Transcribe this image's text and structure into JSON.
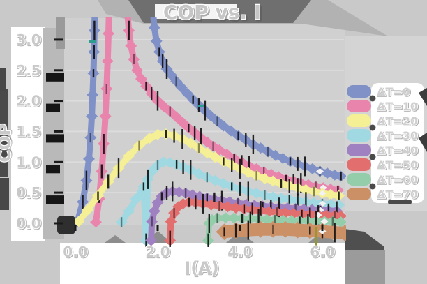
{
  "title": "COP vs. I",
  "axes": {
    "x_label": "I(A)",
    "y_label": "COP",
    "x_tick_labels": [
      "0.0",
      "2.0",
      "4.0",
      "6.0"
    ],
    "y_tick_labels": [
      "0.0",
      "0.5",
      "1.0",
      "1.5",
      "2.0",
      "2.5",
      "3.0"
    ]
  },
  "colors": {
    "canvas": "#c9c9c9",
    "plot_background": "#d0d0d0",
    "panel_white": "#ffffff",
    "shadow_dark": "#4f4f4f",
    "shadow_mid": "#9b9b9b",
    "error_bar": "#101010"
  },
  "chart_data": {
    "type": "line",
    "title": "COP vs. I",
    "xlabel": "I(A)",
    "ylabel": "COP",
    "xlim": [
      0,
      6.8
    ],
    "ylim": [
      0,
      3.3
    ],
    "x_ticks": [
      0,
      2,
      4,
      6
    ],
    "y_ticks": [
      0,
      0.5,
      1,
      1.5,
      2,
      2.5,
      3
    ],
    "grid": false,
    "legend_position": "right",
    "series": [
      {
        "id": "dt0",
        "name": "ΔT=0",
        "color": "#8091c8",
        "band_width": 9,
        "points": [
          [
            0.05,
            0.02
          ],
          [
            0.18,
            0.35
          ],
          [
            0.27,
            0.7
          ],
          [
            0.33,
            1.05
          ],
          [
            0.37,
            1.4
          ],
          [
            0.4,
            1.75
          ],
          [
            0.42,
            2.1
          ],
          [
            0.44,
            2.45
          ],
          [
            0.455,
            2.8
          ],
          [
            0.465,
            3.15
          ],
          [
            0.475,
            3.5
          ],
          [
            1.88,
            3.5
          ],
          [
            1.92,
            3.2
          ],
          [
            1.97,
            2.98
          ],
          [
            2.04,
            2.8
          ],
          [
            2.12,
            2.65
          ],
          [
            2.22,
            2.52
          ],
          [
            2.33,
            2.42
          ],
          [
            2.45,
            2.32
          ],
          [
            2.58,
            2.22
          ],
          [
            2.72,
            2.12
          ],
          [
            2.86,
            2.02
          ],
          [
            3.0,
            1.93
          ],
          [
            3.15,
            1.84
          ],
          [
            3.3,
            1.75
          ],
          [
            3.45,
            1.67
          ],
          [
            3.6,
            1.59
          ],
          [
            3.78,
            1.51
          ],
          [
            3.96,
            1.43
          ],
          [
            4.14,
            1.36
          ],
          [
            4.32,
            1.29
          ],
          [
            4.5,
            1.23
          ],
          [
            4.68,
            1.17
          ],
          [
            4.86,
            1.11
          ],
          [
            5.04,
            1.06
          ],
          [
            5.22,
            1.01
          ],
          [
            5.4,
            0.97
          ],
          [
            5.58,
            0.93
          ],
          [
            5.76,
            0.89
          ],
          [
            5.94,
            0.85
          ],
          [
            6.12,
            0.82
          ],
          [
            6.3,
            0.79
          ],
          [
            6.45,
            0.77
          ]
        ]
      },
      {
        "id": "dt10",
        "name": "ΔT=10",
        "color": "#e985ad",
        "band_width": 9,
        "points": [
          [
            0.5,
            0.02
          ],
          [
            0.58,
            0.4
          ],
          [
            0.64,
            0.85
          ],
          [
            0.69,
            1.3
          ],
          [
            0.73,
            1.75
          ],
          [
            0.76,
            2.2
          ],
          [
            0.785,
            2.65
          ],
          [
            0.805,
            3.1
          ],
          [
            0.82,
            3.5
          ],
          [
            1.26,
            3.5
          ],
          [
            1.3,
            3.15
          ],
          [
            1.35,
            2.9
          ],
          [
            1.42,
            2.68
          ],
          [
            1.5,
            2.5
          ],
          [
            1.6,
            2.36
          ],
          [
            1.72,
            2.24
          ],
          [
            1.85,
            2.12
          ],
          [
            2.0,
            2.0
          ],
          [
            2.15,
            1.91
          ],
          [
            2.3,
            1.83
          ],
          [
            2.45,
            1.74
          ],
          [
            2.6,
            1.65
          ],
          [
            2.75,
            1.56
          ],
          [
            2.9,
            1.48
          ],
          [
            3.05,
            1.4
          ],
          [
            3.2,
            1.33
          ],
          [
            3.35,
            1.26
          ],
          [
            3.5,
            1.2
          ],
          [
            3.68,
            1.13
          ],
          [
            3.86,
            1.06
          ],
          [
            4.04,
            1.0
          ],
          [
            4.22,
            0.94
          ],
          [
            4.4,
            0.89
          ],
          [
            4.58,
            0.84
          ],
          [
            4.76,
            0.8
          ],
          [
            4.94,
            0.76
          ],
          [
            5.12,
            0.72
          ],
          [
            5.3,
            0.69
          ],
          [
            5.48,
            0.66
          ],
          [
            5.66,
            0.63
          ],
          [
            5.84,
            0.6
          ],
          [
            6.02,
            0.58
          ],
          [
            6.2,
            0.56
          ],
          [
            6.38,
            0.54
          ]
        ]
      },
      {
        "id": "dt20",
        "name": "ΔT=20",
        "color": "#f5f095",
        "band_width": 9,
        "points": [
          [
            0.08,
            0.03
          ],
          [
            0.3,
            0.22
          ],
          [
            0.55,
            0.45
          ],
          [
            0.8,
            0.68
          ],
          [
            1.05,
            0.9
          ],
          [
            1.3,
            1.1
          ],
          [
            1.55,
            1.27
          ],
          [
            1.8,
            1.39
          ],
          [
            2.0,
            1.45
          ],
          [
            2.2,
            1.46
          ],
          [
            2.4,
            1.43
          ],
          [
            2.6,
            1.38
          ],
          [
            2.8,
            1.31
          ],
          [
            3.0,
            1.23
          ],
          [
            3.2,
            1.15
          ],
          [
            3.4,
            1.08
          ],
          [
            3.6,
            1.01
          ],
          [
            3.8,
            0.95
          ],
          [
            4.0,
            0.89
          ],
          [
            4.2,
            0.83
          ],
          [
            4.4,
            0.78
          ],
          [
            4.6,
            0.73
          ],
          [
            4.8,
            0.69
          ],
          [
            5.0,
            0.65
          ],
          [
            5.2,
            0.61
          ],
          [
            5.4,
            0.58
          ],
          [
            5.6,
            0.55
          ],
          [
            5.8,
            0.52
          ],
          [
            6.0,
            0.49
          ],
          [
            6.2,
            0.47
          ],
          [
            6.4,
            0.45
          ]
        ]
      },
      {
        "id": "dt30",
        "name": "ΔT=30",
        "color": "#a0d9e2",
        "band_width": 9,
        "points": [
          [
            1.12,
            0.02
          ],
          [
            1.3,
            0.2
          ],
          [
            1.48,
            0.4
          ],
          [
            1.66,
            0.6
          ],
          [
            1.72,
            -0.28
          ],
          [
            1.76,
            0.72
          ],
          [
            1.88,
            0.86
          ],
          [
            2.0,
            0.95
          ],
          [
            2.14,
            1.0
          ],
          [
            2.3,
            0.99
          ],
          [
            2.46,
            0.96
          ],
          [
            2.62,
            0.92
          ],
          [
            2.8,
            0.87
          ],
          [
            3.0,
            0.81
          ],
          [
            3.2,
            0.75
          ],
          [
            3.4,
            0.7
          ],
          [
            3.6,
            0.65
          ],
          [
            3.8,
            0.6
          ],
          [
            4.0,
            0.56
          ],
          [
            4.2,
            0.52
          ],
          [
            4.4,
            0.49
          ],
          [
            4.6,
            0.46
          ],
          [
            4.8,
            0.43
          ],
          [
            5.0,
            0.41
          ],
          [
            5.2,
            0.39
          ],
          [
            5.4,
            0.37
          ],
          [
            5.6,
            0.35
          ],
          [
            5.8,
            0.335
          ],
          [
            6.0,
            0.32
          ],
          [
            6.2,
            0.31
          ],
          [
            6.4,
            0.3
          ]
        ]
      },
      {
        "id": "dt40",
        "name": "ΔT=40",
        "color": "#9f81c2",
        "band_width": 9,
        "points": [
          [
            1.84,
            -0.28
          ],
          [
            1.86,
            0.03
          ],
          [
            1.92,
            0.2
          ],
          [
            2.0,
            0.34
          ],
          [
            2.1,
            0.44
          ],
          [
            2.22,
            0.5
          ],
          [
            2.36,
            0.52
          ],
          [
            2.52,
            0.51
          ],
          [
            2.68,
            0.49
          ],
          [
            2.85,
            0.465
          ],
          [
            3.02,
            0.44
          ],
          [
            3.2,
            0.415
          ],
          [
            3.38,
            0.39
          ],
          [
            3.56,
            0.37
          ],
          [
            3.75,
            0.35
          ],
          [
            3.95,
            0.33
          ],
          [
            4.15,
            0.31
          ],
          [
            4.35,
            0.295
          ],
          [
            4.55,
            0.28
          ],
          [
            4.75,
            0.27
          ],
          [
            4.95,
            0.26
          ],
          [
            5.15,
            0.25
          ],
          [
            5.35,
            0.24
          ],
          [
            5.55,
            0.23
          ],
          [
            5.75,
            0.222
          ],
          [
            5.95,
            0.215
          ],
          [
            6.15,
            0.208
          ],
          [
            6.35,
            0.2
          ]
        ]
      },
      {
        "id": "dt50",
        "name": "ΔT=50",
        "color": "#e26f6e",
        "band_width": 9,
        "points": [
          [
            2.3,
            -0.28
          ],
          [
            2.32,
            0.03
          ],
          [
            2.4,
            0.17
          ],
          [
            2.5,
            0.27
          ],
          [
            2.62,
            0.32
          ],
          [
            2.76,
            0.345
          ],
          [
            2.92,
            0.34
          ],
          [
            3.1,
            0.32
          ],
          [
            3.3,
            0.3
          ],
          [
            3.5,
            0.285
          ],
          [
            3.7,
            0.27
          ],
          [
            3.9,
            0.25
          ],
          [
            4.1,
            0.235
          ],
          [
            4.3,
            0.22
          ],
          [
            4.5,
            0.205
          ],
          [
            4.7,
            0.19
          ],
          [
            4.9,
            0.18
          ],
          [
            5.1,
            0.17
          ],
          [
            5.3,
            0.16
          ],
          [
            5.5,
            0.15
          ],
          [
            5.7,
            0.143
          ],
          [
            5.9,
            0.136
          ],
          [
            6.1,
            0.13
          ],
          [
            6.3,
            0.125
          ],
          [
            6.45,
            0.12
          ]
        ]
      },
      {
        "id": "dt60",
        "name": "ΔT=60",
        "color": "#94cdaa",
        "band_width": 8,
        "points": [
          [
            3.23,
            -0.28
          ],
          [
            3.25,
            0.0
          ],
          [
            3.32,
            0.06
          ],
          [
            3.45,
            0.085
          ],
          [
            3.65,
            0.09
          ],
          [
            3.85,
            0.086
          ],
          [
            4.05,
            0.08
          ],
          [
            4.25,
            0.074
          ],
          [
            4.45,
            0.068
          ],
          [
            4.65,
            0.062
          ],
          [
            4.85,
            0.056
          ],
          [
            5.05,
            0.05
          ],
          [
            5.25,
            0.046
          ],
          [
            5.45,
            0.042
          ],
          [
            5.65,
            0.038
          ],
          [
            5.85,
            0.034
          ],
          [
            6.05,
            0.03
          ],
          [
            6.25,
            0.026
          ],
          [
            6.45,
            0.022
          ]
        ]
      },
      {
        "id": "dt70",
        "name": "ΔT=70",
        "color": "#cc9066",
        "band_width": 18,
        "points": [
          [
            3.62,
            -0.14
          ],
          [
            3.9,
            -0.12
          ],
          [
            4.2,
            -0.11
          ],
          [
            4.5,
            -0.1
          ],
          [
            4.8,
            -0.1
          ],
          [
            5.1,
            -0.1
          ],
          [
            5.4,
            -0.11
          ],
          [
            5.7,
            -0.12
          ],
          [
            6.0,
            -0.13
          ],
          [
            6.3,
            -0.15
          ],
          [
            6.55,
            -0.16
          ]
        ]
      }
    ]
  }
}
